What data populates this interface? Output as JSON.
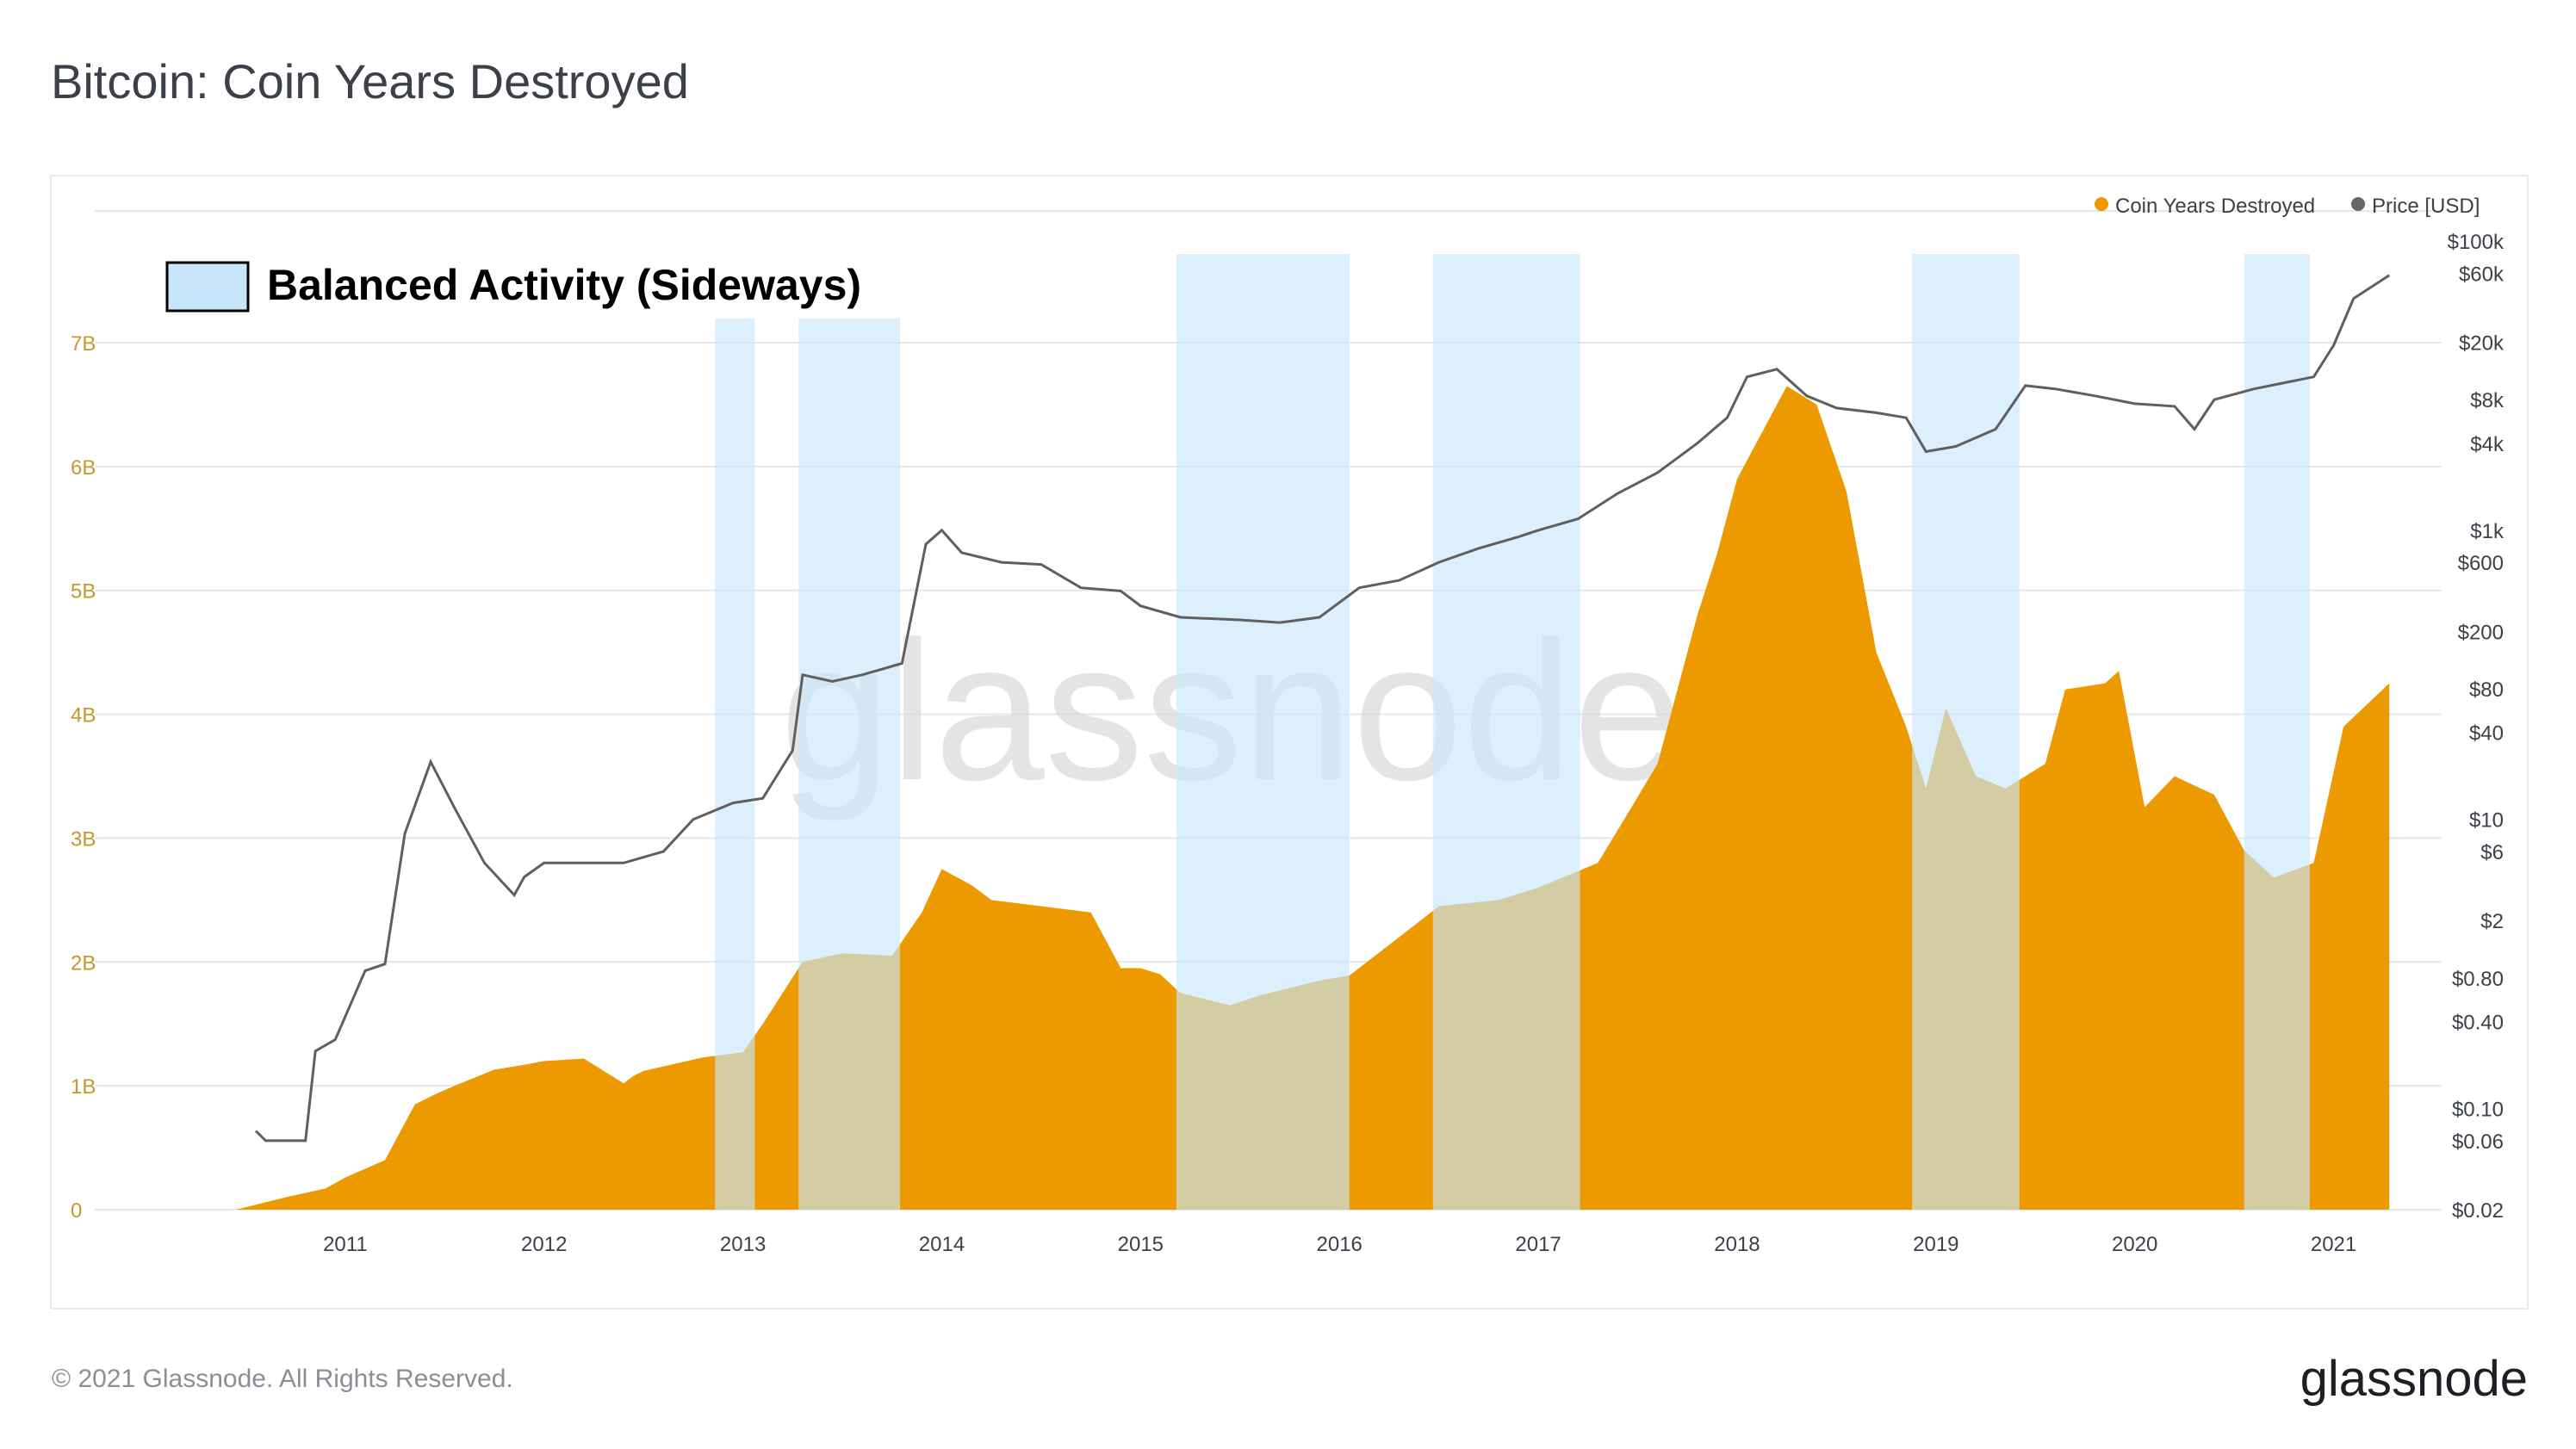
{
  "title": "Bitcoin: Coin Years Destroyed",
  "footer": {
    "copyright": "© 2021 Glassnode. All Rights Reserved.",
    "brand": "glassnode"
  },
  "watermark": "glassnode",
  "annotation_label": "Balanced Activity (Sideways)",
  "colors": {
    "cyd": "#ec9a00",
    "price": "#5f5f5f",
    "band": "#c7e6fa",
    "grid": "#e5e7ea",
    "left_ticks": "#c8962a"
  },
  "chart_data": {
    "type": "area",
    "title": "Bitcoin: Coin Years Destroyed",
    "legend": {
      "position": "top-right",
      "entries": [
        "Coin Years Destroyed",
        "Price [USD]"
      ]
    },
    "x_ticks": [
      "2011",
      "2012",
      "2013",
      "2014",
      "2015",
      "2016",
      "2017",
      "2018",
      "2019",
      "2020",
      "2021"
    ],
    "y_left": {
      "ticks": [
        "0",
        "1B",
        "2B",
        "3B",
        "4B",
        "5B",
        "6B",
        "7B"
      ],
      "ylim": [
        0,
        7000000000.0
      ]
    },
    "y_right": {
      "scale": "log",
      "ticks": [
        "$100k",
        "$60k",
        "$20k",
        "$8k",
        "$4k",
        "$1k",
        "$600",
        "$200",
        "$80",
        "$40",
        "$10",
        "$6",
        "$2",
        "$0.80",
        "$0.40",
        "$0.10",
        "$0.06",
        "$0.02"
      ]
    },
    "grid": "horizontal",
    "shaded_ranges": [
      {
        "start": 2012.86,
        "end": 2013.06
      },
      {
        "start": 2013.28,
        "end": 2013.79
      },
      {
        "start": 2015.18,
        "end": 2016.05
      },
      {
        "start": 2016.47,
        "end": 2017.21
      },
      {
        "start": 2018.88,
        "end": 2019.42
      },
      {
        "start": 2020.55,
        "end": 2020.88
      }
    ],
    "series": [
      {
        "name": "Coin Years Destroyed",
        "x": [
          2010.45,
          2010.7,
          2010.9,
          2011.0,
          2011.2,
          2011.35,
          2011.45,
          2011.55,
          2011.75,
          2011.9,
          2012.0,
          2012.2,
          2012.4,
          2012.45,
          2012.5,
          2012.8,
          2013.0,
          2013.1,
          2013.2,
          2013.3,
          2013.5,
          2013.75,
          2013.9,
          2014.0,
          2014.15,
          2014.25,
          2014.5,
          2014.75,
          2014.9,
          2015.0,
          2015.1,
          2015.2,
          2015.45,
          2015.6,
          2015.9,
          2016.05,
          2016.3,
          2016.5,
          2016.8,
          2017.0,
          2017.15,
          2017.3,
          2017.45,
          2017.6,
          2017.7,
          2017.8,
          2017.9,
          2018.0,
          2018.15,
          2018.25,
          2018.4,
          2018.55,
          2018.7,
          2018.85,
          2018.95,
          2019.05,
          2019.2,
          2019.35,
          2019.55,
          2019.65,
          2019.85,
          2019.92,
          2020.05,
          2020.2,
          2020.4,
          2020.55,
          2020.7,
          2020.9,
          2021.05,
          2021.28
        ],
        "values": [
          0.0,
          100000000.0,
          170000000.0,
          260000000.0,
          400000000.0,
          850000000.0,
          930000000.0,
          1000000000.0,
          1130000000.0,
          1170000000.0,
          1200000000.0,
          1220000000.0,
          1020000000.0,
          1080000000.0,
          1120000000.0,
          1230000000.0,
          1270000000.0,
          1500000000.0,
          1750000000.0,
          2000000000.0,
          2070000000.0,
          2050000000.0,
          2400000000.0,
          2750000000.0,
          2620000000.0,
          2500000000.0,
          2450000000.0,
          2400000000.0,
          1950000000.0,
          1950000000.0,
          1900000000.0,
          1750000000.0,
          1650000000.0,
          1730000000.0,
          1850000000.0,
          1890000000.0,
          2200000000.0,
          2450000000.0,
          2500000000.0,
          2600000000.0,
          2700000000.0,
          2800000000.0,
          3200000000.0,
          3600000000.0,
          4200000000.0,
          4800000000.0,
          5300000000.0,
          5900000000.0,
          6350000000.0,
          6650000000.0,
          6500000000.0,
          5800000000.0,
          4500000000.0,
          3900000000.0,
          3400000000.0,
          4050000000.0,
          3500000000.0,
          3400000000.0,
          3600000000.0,
          4200000000.0,
          4250000000.0,
          4350000000.0,
          3250000000.0,
          3500000000.0,
          3350000000.0,
          2900000000.0,
          2680000000.0,
          2800000000.0,
          3900000000.0,
          4250000000.0
        ]
      },
      {
        "name": "Price [USD]",
        "x": [
          2010.55,
          2010.6,
          2010.7,
          2010.8,
          2010.85,
          2010.95,
          2011.1,
          2011.2,
          2011.3,
          2011.43,
          2011.55,
          2011.7,
          2011.85,
          2011.9,
          2012.0,
          2012.2,
          2012.4,
          2012.6,
          2012.75,
          2012.95,
          2013.1,
          2013.25,
          2013.3,
          2013.45,
          2013.6,
          2013.8,
          2013.92,
          2014.0,
          2014.1,
          2014.3,
          2014.5,
          2014.7,
          2014.9,
          2015.0,
          2015.2,
          2015.5,
          2015.7,
          2015.9,
          2016.1,
          2016.3,
          2016.5,
          2016.7,
          2016.9,
          2017.0,
          2017.2,
          2017.4,
          2017.6,
          2017.8,
          2017.95,
          2018.05,
          2018.2,
          2018.35,
          2018.5,
          2018.7,
          2018.85,
          2018.95,
          2019.1,
          2019.3,
          2019.45,
          2019.6,
          2019.8,
          2020.0,
          2020.2,
          2020.3,
          2020.4,
          2020.6,
          2020.9,
          2021.0,
          2021.1,
          2021.28
        ],
        "values": [
          0.07,
          0.06,
          0.06,
          0.06,
          0.25,
          0.3,
          0.9,
          1.0,
          8,
          25,
          12,
          5,
          3,
          4,
          5,
          5,
          5,
          6,
          10,
          13,
          14,
          30,
          100,
          90,
          100,
          120,
          800,
          1000,
          700,
          600,
          580,
          400,
          380,
          300,
          250,
          240,
          230,
          250,
          400,
          450,
          600,
          750,
          900,
          1000,
          1200,
          1800,
          2500,
          4000,
          6000,
          11500,
          13000,
          8500,
          7000,
          6500,
          6000,
          3500,
          3800,
          5000,
          10000,
          9500,
          8500,
          7500,
          7200,
          5000,
          8000,
          9500,
          11500,
          19000,
          40000,
          58000
        ]
      }
    ]
  }
}
